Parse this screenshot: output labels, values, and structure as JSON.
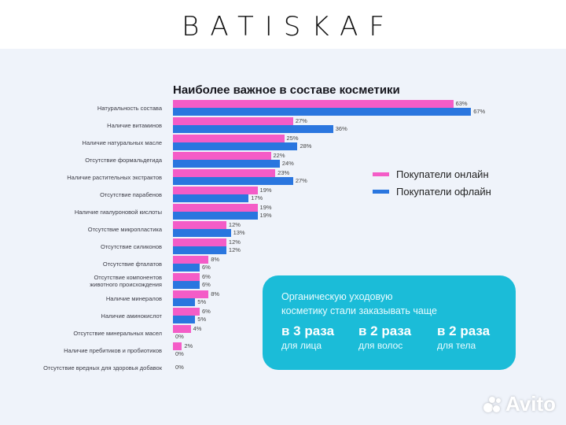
{
  "header": {
    "logo": "BATISKAF"
  },
  "chart_data": {
    "type": "bar",
    "orientation": "horizontal",
    "title": "Наиболее важное в составе косметики",
    "xlabel": "",
    "ylabel": "",
    "unit": "%",
    "grid": false,
    "legend_position": "right",
    "categories": [
      "Натуральность состава",
      "Наличие витаминов",
      "Наличие натуральных масле",
      "Отсутствие формальдегида",
      "Наличие растительных экстрактов",
      "Отсутствие парабенов",
      "Наличие гиалуроновой кислоты",
      "Отсутствие микропластика",
      "Отсутствие силиконов",
      "Отсутствие фталатов",
      "Отсутствие компонентов животного происхождения",
      "Наличие минералов",
      "Наличие аминокислот",
      "Отсутствие минеральных масел",
      "Наличие пребитиков и пробиотиков",
      "Отсутствие вредных для здоровья добавок"
    ],
    "series": [
      {
        "name": "Покупатели онлайн",
        "color": "#f45cc7",
        "values": [
          63,
          27,
          25,
          22,
          23,
          19,
          19,
          12,
          12,
          8,
          6,
          8,
          6,
          4,
          2,
          0
        ]
      },
      {
        "name": "Покупатели офлайн",
        "color": "#2a76df",
        "values": [
          67,
          36,
          28,
          24,
          27,
          17,
          19,
          13,
          12,
          6,
          6,
          5,
          5,
          0,
          0,
          0
        ]
      }
    ],
    "row_labels": [
      [
        "Натуральность состава"
      ],
      [
        "Наличие витаминов"
      ],
      [
        "Наличие натуральных масле"
      ],
      [
        "Отсутствие формальдегида"
      ],
      [
        "Наличие растительных экстрактов"
      ],
      [
        "Отсутствие парабенов"
      ],
      [
        "Наличие гиалуроновой кислоты"
      ],
      [
        "Отсутствие микропластика"
      ],
      [
        "Отсутствие силиконов"
      ],
      [
        "Отсутствие фталатов"
      ],
      [
        "Отсутствие компонентов",
        "животного происхождения"
      ],
      [
        "Наличие минералов"
      ],
      [
        "Наличие аминокислот"
      ],
      [
        "Отсутствие минеральных масел"
      ],
      [
        "Наличие пребитиков и пробиотиков"
      ],
      [
        "Отсутствие вредных для здоровья добавок"
      ]
    ]
  },
  "callout": {
    "text_line1": "Органическую уходовую",
    "text_line2": "косметику стали заказывать чаще",
    "stats": [
      {
        "big": "в 3 раза",
        "small": "для лица"
      },
      {
        "big": "в 2 раза",
        "small": "для волос"
      },
      {
        "big": "в 2 раза",
        "small": "для тела"
      }
    ]
  },
  "watermark": {
    "text": "Avito"
  }
}
